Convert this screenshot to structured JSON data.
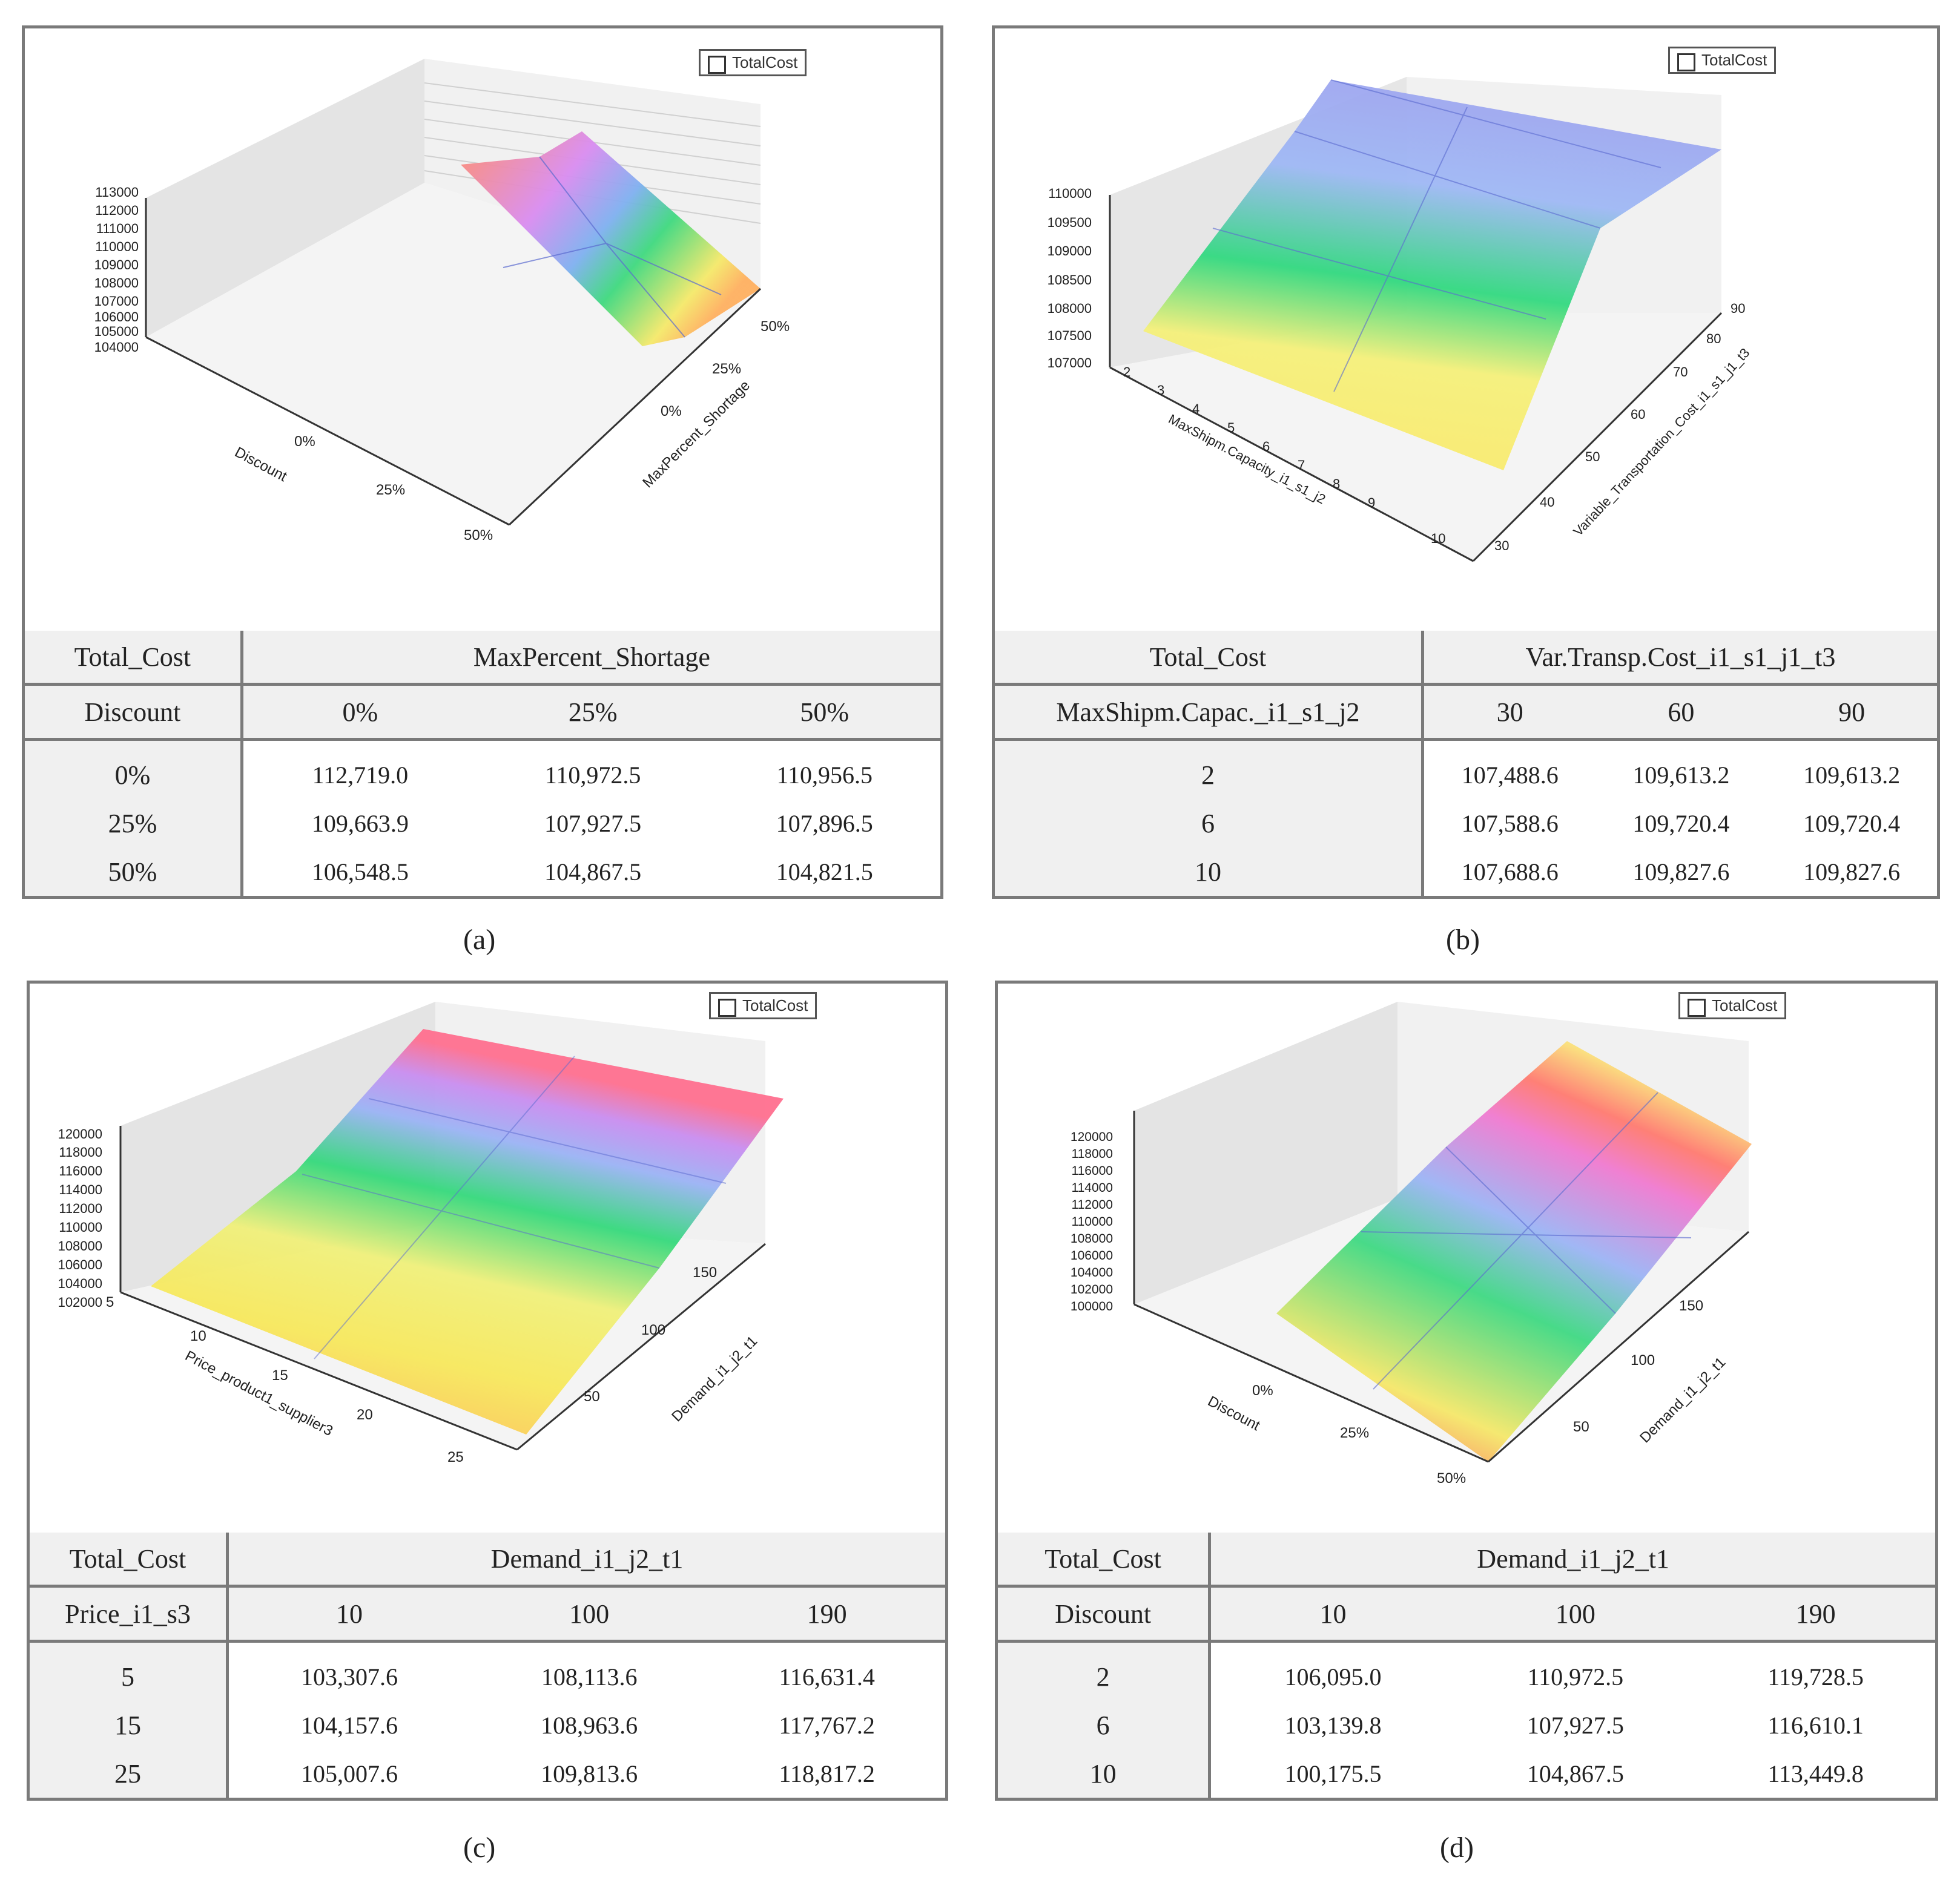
{
  "chart_data": [
    {
      "type": "surface",
      "caption": "(a)",
      "legend": "TotalCost",
      "x_axis_label": "Discount",
      "x_ticks": [
        "0%",
        "25%",
        "50%"
      ],
      "y_axis_label": "MaxPercent_Shortage",
      "y_ticks": [
        "0%",
        "25%",
        "50%"
      ],
      "z_ticks": [
        "113000",
        "112000",
        "111000",
        "110000",
        "109000",
        "108000",
        "107000",
        "106000",
        "105000",
        "104000"
      ],
      "table": {
        "corner": "Total_Cost",
        "col_title": "MaxPercent_Shortage",
        "row_title": "Discount",
        "columns": [
          "0%",
          "25%",
          "50%"
        ],
        "rows": [
          {
            "label": "0%",
            "values": [
              "112,719.0",
              "110,972.5",
              "110,956.5"
            ]
          },
          {
            "label": "25%",
            "values": [
              "109,663.9",
              "107,927.5",
              "107,896.5"
            ]
          },
          {
            "label": "50%",
            "values": [
              "106,548.5",
              "104,867.5",
              "104,821.5"
            ]
          }
        ]
      }
    },
    {
      "type": "surface",
      "caption": "(b)",
      "legend": "TotalCost",
      "x_axis_label": "MaxShipm.Capacity_i1_s1_j2",
      "x_ticks": [
        "2",
        "3",
        "4",
        "5",
        "6",
        "7",
        "8",
        "9",
        "10"
      ],
      "y_axis_label": "Variable_Transportation_Cost_i1_s1_j1_t3",
      "y_ticks": [
        "30",
        "40",
        "50",
        "60",
        "70",
        "80",
        "90"
      ],
      "z_ticks": [
        "110000",
        "109500",
        "109000",
        "108500",
        "108000",
        "107500",
        "107000"
      ],
      "table": {
        "corner": "Total_Cost",
        "col_title": "Var.Transp.Cost_i1_s1_j1_t3",
        "row_title": "MaxShipm.Capac._i1_s1_j2",
        "columns": [
          "30",
          "60",
          "90"
        ],
        "rows": [
          {
            "label": "2",
            "values": [
              "107,488.6",
              "109,613.2",
              "109,613.2"
            ]
          },
          {
            "label": "6",
            "values": [
              "107,588.6",
              "109,720.4",
              "109,720.4"
            ]
          },
          {
            "label": "10",
            "values": [
              "107,688.6",
              "109,827.6",
              "109,827.6"
            ]
          }
        ]
      }
    },
    {
      "type": "surface",
      "caption": "(c)",
      "legend": "TotalCost",
      "x_axis_label": "Price_product1_supplier3",
      "x_ticks": [
        "5",
        "10",
        "15",
        "20",
        "25"
      ],
      "y_axis_label": "Demand_i1_j2_t1",
      "y_ticks": [
        "50",
        "100",
        "150"
      ],
      "z_ticks": [
        "120000",
        "118000",
        "116000",
        "114000",
        "112000",
        "110000",
        "108000",
        "106000",
        "104000",
        "102000"
      ],
      "table": {
        "corner": "Total_Cost",
        "col_title": "Demand_i1_j2_t1",
        "row_title": "Price_i1_s3",
        "columns": [
          "10",
          "100",
          "190"
        ],
        "rows": [
          {
            "label": "5",
            "values": [
              "103,307.6",
              "108,113.6",
              "116,631.4"
            ]
          },
          {
            "label": "15",
            "values": [
              "104,157.6",
              "108,963.6",
              "117,767.2"
            ]
          },
          {
            "label": "25",
            "values": [
              "105,007.6",
              "109,813.6",
              "118,817.2"
            ]
          }
        ]
      }
    },
    {
      "type": "surface",
      "caption": "(d)",
      "legend": "TotalCost",
      "x_axis_label": "Discount",
      "x_ticks": [
        "0%",
        "25%",
        "50%"
      ],
      "y_axis_label": "Demand_i1_j2_t1",
      "y_ticks": [
        "50",
        "100",
        "150"
      ],
      "z_ticks": [
        "120000",
        "118000",
        "116000",
        "114000",
        "112000",
        "110000",
        "108000",
        "106000",
        "104000",
        "102000",
        "100000"
      ],
      "table": {
        "corner": "Total_Cost",
        "col_title": "Demand_i1_j2_t1",
        "row_title": "Discount",
        "columns": [
          "10",
          "100",
          "190"
        ],
        "rows": [
          {
            "label": "2",
            "values": [
              "106,095.0",
              "110,972.5",
              "119,728.5"
            ]
          },
          {
            "label": "6",
            "values": [
              "103,139.8",
              "107,927.5",
              "116,610.1"
            ]
          },
          {
            "label": "10",
            "values": [
              "100,175.5",
              "104,867.5",
              "113,449.8"
            ]
          }
        ]
      }
    }
  ]
}
